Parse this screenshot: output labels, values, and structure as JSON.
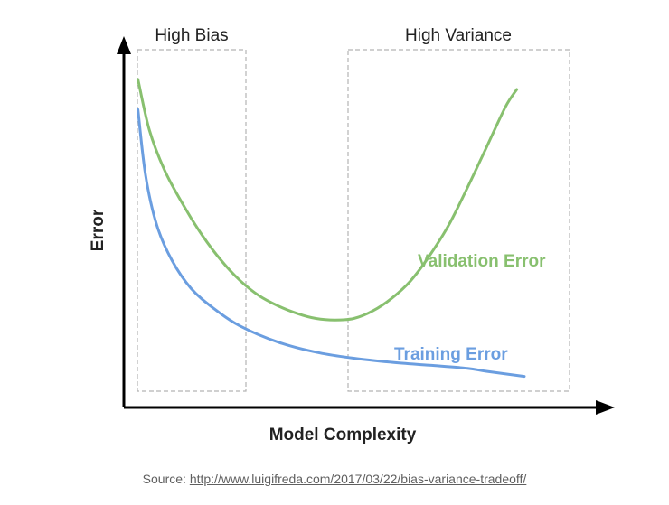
{
  "chart_data": {
    "type": "line",
    "title": "",
    "xlabel": "Model Complexity",
    "ylabel": "Error",
    "grid": false,
    "regions": [
      {
        "label": "High Bias"
      },
      {
        "label": "High Variance"
      }
    ],
    "series": [
      {
        "name": "Validation Error",
        "color": "#88c06f",
        "points": [
          [
            0.3,
            6.5
          ],
          [
            0.6,
            5.5
          ],
          [
            1.0,
            4.7
          ],
          [
            1.5,
            4.0
          ],
          [
            2.0,
            3.4
          ],
          [
            2.5,
            2.9
          ],
          [
            3.0,
            2.5
          ],
          [
            3.5,
            2.2
          ],
          [
            4.0,
            2.0
          ],
          [
            4.5,
            1.85
          ],
          [
            5.0,
            1.75
          ],
          [
            5.5,
            1.72
          ],
          [
            6.0,
            1.75
          ],
          [
            6.5,
            1.9
          ],
          [
            7.0,
            2.15
          ],
          [
            7.5,
            2.5
          ],
          [
            8.0,
            3.0
          ],
          [
            8.5,
            3.6
          ],
          [
            9.0,
            4.35
          ],
          [
            9.5,
            5.15
          ],
          [
            10.0,
            5.95
          ],
          [
            10.3,
            6.3
          ]
        ]
      },
      {
        "name": "Training Error",
        "color": "#6b9ee0",
        "points": [
          [
            0.3,
            5.9
          ],
          [
            0.5,
            4.6
          ],
          [
            0.8,
            3.6
          ],
          [
            1.2,
            2.9
          ],
          [
            1.7,
            2.35
          ],
          [
            2.3,
            1.95
          ],
          [
            3.0,
            1.6
          ],
          [
            4.0,
            1.28
          ],
          [
            5.0,
            1.08
          ],
          [
            6.0,
            0.96
          ],
          [
            7.0,
            0.88
          ],
          [
            8.0,
            0.82
          ],
          [
            9.0,
            0.76
          ],
          [
            9.5,
            0.7
          ],
          [
            10.5,
            0.6
          ]
        ]
      }
    ],
    "xlim": [
      0,
      10.5
    ],
    "ylim": [
      0,
      7
    ]
  },
  "caption": {
    "prefix": "Source: ",
    "link": "http://www.luigifreda.com/2017/03/22/bias-variance-tradeoff/"
  }
}
